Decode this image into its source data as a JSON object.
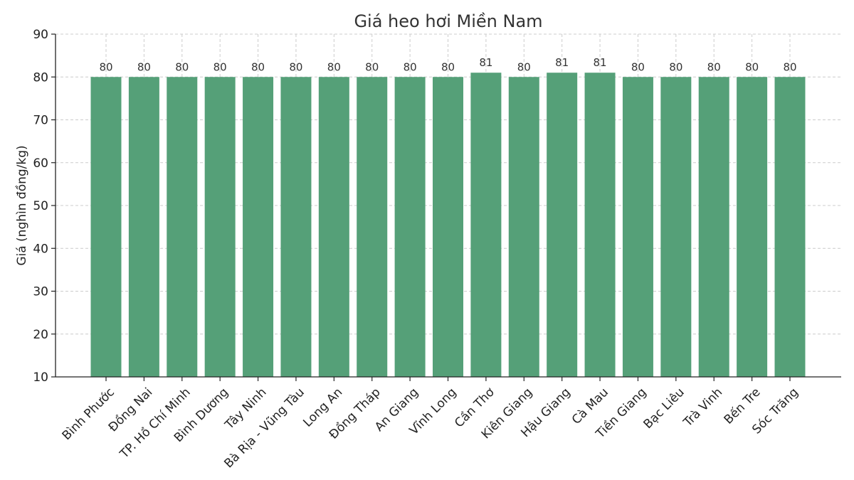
{
  "chart_data": {
    "type": "bar",
    "title": "Giá heo hơi Miền Nam",
    "xlabel": "",
    "ylabel": "Giá (nghìn đồng/kg)",
    "ylim": [
      10,
      90
    ],
    "yticks": [
      10,
      20,
      30,
      40,
      50,
      60,
      70,
      80,
      90
    ],
    "grid": true,
    "bar_color": "#55a078",
    "categories": [
      "Bình Phước",
      "Đồng Nai",
      "TP. Hồ Chí Minh",
      "Bình Dương",
      "Tây Ninh",
      "Bà Rịa - Vũng Tàu",
      "Long An",
      "Đồng Tháp",
      "An Giang",
      "Vĩnh Long",
      "Cần Thơ",
      "Kiên Giang",
      "Hậu Giang",
      "Cà Mau",
      "Tiền Giang",
      "Bạc Liêu",
      "Trà Vinh",
      "Bến Tre",
      "Sóc Trăng"
    ],
    "values": [
      80,
      80,
      80,
      80,
      80,
      80,
      80,
      80,
      80,
      80,
      81,
      80,
      81,
      81,
      80,
      80,
      80,
      80,
      80
    ]
  }
}
